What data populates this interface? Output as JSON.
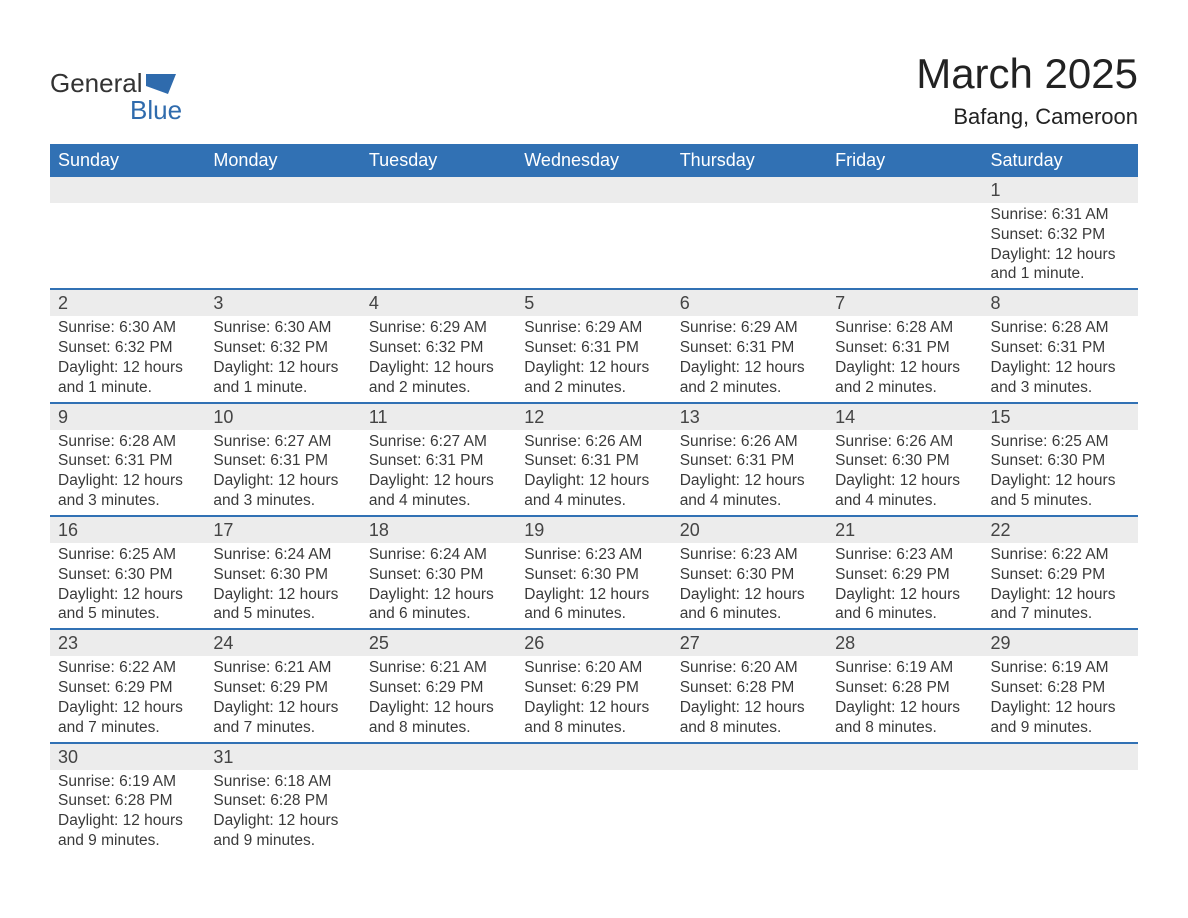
{
  "brand": {
    "word1": "General",
    "word2": "Blue",
    "shape_color": "#2f6bad"
  },
  "title": "March 2025",
  "location": "Bafang, Cameroon",
  "colors": {
    "header_bg": "#3171b4",
    "header_text": "#ffffff",
    "daynum_bg": "#ececec",
    "row_divider": "#3171b4",
    "body_text": "#3a3a3a",
    "page_bg": "#ffffff"
  },
  "typography": {
    "title_fontsize": 42,
    "location_fontsize": 22,
    "header_fontsize": 18,
    "daynum_fontsize": 18,
    "detail_fontsize": 15.5,
    "font_family": "Arial"
  },
  "weekdays": [
    "Sunday",
    "Monday",
    "Tuesday",
    "Wednesday",
    "Thursday",
    "Friday",
    "Saturday"
  ],
  "weeks": [
    [
      null,
      null,
      null,
      null,
      null,
      null,
      {
        "day": "1",
        "sunrise": "Sunrise: 6:31 AM",
        "sunset": "Sunset: 6:32 PM",
        "daylight": "Daylight: 12 hours and 1 minute."
      }
    ],
    [
      {
        "day": "2",
        "sunrise": "Sunrise: 6:30 AM",
        "sunset": "Sunset: 6:32 PM",
        "daylight": "Daylight: 12 hours and 1 minute."
      },
      {
        "day": "3",
        "sunrise": "Sunrise: 6:30 AM",
        "sunset": "Sunset: 6:32 PM",
        "daylight": "Daylight: 12 hours and 1 minute."
      },
      {
        "day": "4",
        "sunrise": "Sunrise: 6:29 AM",
        "sunset": "Sunset: 6:32 PM",
        "daylight": "Daylight: 12 hours and 2 minutes."
      },
      {
        "day": "5",
        "sunrise": "Sunrise: 6:29 AM",
        "sunset": "Sunset: 6:31 PM",
        "daylight": "Daylight: 12 hours and 2 minutes."
      },
      {
        "day": "6",
        "sunrise": "Sunrise: 6:29 AM",
        "sunset": "Sunset: 6:31 PM",
        "daylight": "Daylight: 12 hours and 2 minutes."
      },
      {
        "day": "7",
        "sunrise": "Sunrise: 6:28 AM",
        "sunset": "Sunset: 6:31 PM",
        "daylight": "Daylight: 12 hours and 2 minutes."
      },
      {
        "day": "8",
        "sunrise": "Sunrise: 6:28 AM",
        "sunset": "Sunset: 6:31 PM",
        "daylight": "Daylight: 12 hours and 3 minutes."
      }
    ],
    [
      {
        "day": "9",
        "sunrise": "Sunrise: 6:28 AM",
        "sunset": "Sunset: 6:31 PM",
        "daylight": "Daylight: 12 hours and 3 minutes."
      },
      {
        "day": "10",
        "sunrise": "Sunrise: 6:27 AM",
        "sunset": "Sunset: 6:31 PM",
        "daylight": "Daylight: 12 hours and 3 minutes."
      },
      {
        "day": "11",
        "sunrise": "Sunrise: 6:27 AM",
        "sunset": "Sunset: 6:31 PM",
        "daylight": "Daylight: 12 hours and 4 minutes."
      },
      {
        "day": "12",
        "sunrise": "Sunrise: 6:26 AM",
        "sunset": "Sunset: 6:31 PM",
        "daylight": "Daylight: 12 hours and 4 minutes."
      },
      {
        "day": "13",
        "sunrise": "Sunrise: 6:26 AM",
        "sunset": "Sunset: 6:31 PM",
        "daylight": "Daylight: 12 hours and 4 minutes."
      },
      {
        "day": "14",
        "sunrise": "Sunrise: 6:26 AM",
        "sunset": "Sunset: 6:30 PM",
        "daylight": "Daylight: 12 hours and 4 minutes."
      },
      {
        "day": "15",
        "sunrise": "Sunrise: 6:25 AM",
        "sunset": "Sunset: 6:30 PM",
        "daylight": "Daylight: 12 hours and 5 minutes."
      }
    ],
    [
      {
        "day": "16",
        "sunrise": "Sunrise: 6:25 AM",
        "sunset": "Sunset: 6:30 PM",
        "daylight": "Daylight: 12 hours and 5 minutes."
      },
      {
        "day": "17",
        "sunrise": "Sunrise: 6:24 AM",
        "sunset": "Sunset: 6:30 PM",
        "daylight": "Daylight: 12 hours and 5 minutes."
      },
      {
        "day": "18",
        "sunrise": "Sunrise: 6:24 AM",
        "sunset": "Sunset: 6:30 PM",
        "daylight": "Daylight: 12 hours and 6 minutes."
      },
      {
        "day": "19",
        "sunrise": "Sunrise: 6:23 AM",
        "sunset": "Sunset: 6:30 PM",
        "daylight": "Daylight: 12 hours and 6 minutes."
      },
      {
        "day": "20",
        "sunrise": "Sunrise: 6:23 AM",
        "sunset": "Sunset: 6:30 PM",
        "daylight": "Daylight: 12 hours and 6 minutes."
      },
      {
        "day": "21",
        "sunrise": "Sunrise: 6:23 AM",
        "sunset": "Sunset: 6:29 PM",
        "daylight": "Daylight: 12 hours and 6 minutes."
      },
      {
        "day": "22",
        "sunrise": "Sunrise: 6:22 AM",
        "sunset": "Sunset: 6:29 PM",
        "daylight": "Daylight: 12 hours and 7 minutes."
      }
    ],
    [
      {
        "day": "23",
        "sunrise": "Sunrise: 6:22 AM",
        "sunset": "Sunset: 6:29 PM",
        "daylight": "Daylight: 12 hours and 7 minutes."
      },
      {
        "day": "24",
        "sunrise": "Sunrise: 6:21 AM",
        "sunset": "Sunset: 6:29 PM",
        "daylight": "Daylight: 12 hours and 7 minutes."
      },
      {
        "day": "25",
        "sunrise": "Sunrise: 6:21 AM",
        "sunset": "Sunset: 6:29 PM",
        "daylight": "Daylight: 12 hours and 8 minutes."
      },
      {
        "day": "26",
        "sunrise": "Sunrise: 6:20 AM",
        "sunset": "Sunset: 6:29 PM",
        "daylight": "Daylight: 12 hours and 8 minutes."
      },
      {
        "day": "27",
        "sunrise": "Sunrise: 6:20 AM",
        "sunset": "Sunset: 6:28 PM",
        "daylight": "Daylight: 12 hours and 8 minutes."
      },
      {
        "day": "28",
        "sunrise": "Sunrise: 6:19 AM",
        "sunset": "Sunset: 6:28 PM",
        "daylight": "Daylight: 12 hours and 8 minutes."
      },
      {
        "day": "29",
        "sunrise": "Sunrise: 6:19 AM",
        "sunset": "Sunset: 6:28 PM",
        "daylight": "Daylight: 12 hours and 9 minutes."
      }
    ],
    [
      {
        "day": "30",
        "sunrise": "Sunrise: 6:19 AM",
        "sunset": "Sunset: 6:28 PM",
        "daylight": "Daylight: 12 hours and 9 minutes."
      },
      {
        "day": "31",
        "sunrise": "Sunrise: 6:18 AM",
        "sunset": "Sunset: 6:28 PM",
        "daylight": "Daylight: 12 hours and 9 minutes."
      },
      null,
      null,
      null,
      null,
      null
    ]
  ]
}
